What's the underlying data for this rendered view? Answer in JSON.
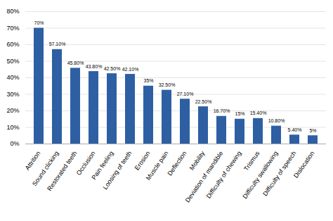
{
  "chart_data": {
    "type": "bar",
    "categories": [
      "Attrition",
      "Sound clicking",
      "Restorated teeth",
      "Occlusion",
      "Pain feeling",
      "Loosing of teeth",
      "Erosion",
      "Muscle pain",
      "Deflection",
      "Mobility",
      "Deviation of mandible",
      "Difficulty of chewing",
      "Trismus",
      "Difficulty swallowing",
      "Difficulty of speech",
      "Dislocation"
    ],
    "values": [
      70,
      57.1,
      45.8,
      43.8,
      42.5,
      42.1,
      35,
      32.5,
      27.1,
      22.5,
      16.7,
      15,
      15.4,
      10.8,
      5.4,
      5
    ],
    "value_labels": [
      "70%",
      "57.10%",
      "45.80%",
      "43.80%",
      "42.50%",
      "42.10%",
      "35%",
      "32.50%",
      "27.10%",
      "22.50%",
      "16.70%",
      "15%",
      "15.40%",
      "10.80%",
      "5.40%",
      "5%"
    ],
    "color": "#2E5FA3",
    "ylim": [
      0,
      80
    ],
    "yticks": [
      {
        "value": 0,
        "label": "0%"
      },
      {
        "value": 10,
        "label": "10%"
      },
      {
        "value": 20,
        "label": "20%"
      },
      {
        "value": 30,
        "label": "30%"
      },
      {
        "value": 40,
        "label": "40%"
      },
      {
        "value": 50,
        "label": "50%"
      },
      {
        "value": 60,
        "label": "60%"
      },
      {
        "value": 70,
        "label": "70%"
      },
      {
        "value": 80,
        "label": "80%"
      }
    ],
    "grid": true,
    "data_labels": true
  }
}
